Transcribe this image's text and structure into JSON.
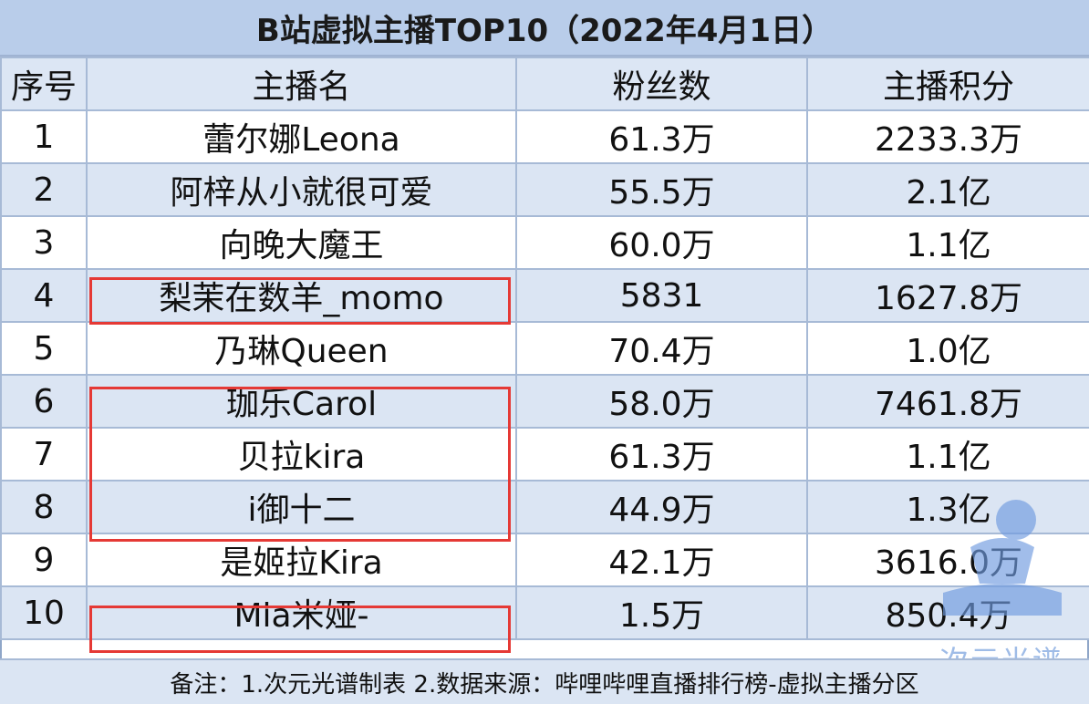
{
  "title": "B站虚拟主播TOP10（2022年4月1日）",
  "headers": [
    "序号",
    "主播名",
    "粉丝数",
    "主播积分"
  ],
  "rows": [
    {
      "rank": "1",
      "name": "蕾尔娜Leona",
      "fans": "61.3万",
      "score": "2233.3万"
    },
    {
      "rank": "2",
      "name": "阿梓从小就很可爱",
      "fans": "55.5万",
      "score": "2.1亿"
    },
    {
      "rank": "3",
      "name": "向晚大魔王",
      "fans": "60.0万",
      "score": "1.1亿"
    },
    {
      "rank": "4",
      "name": "梨茉在数羊_momo",
      "fans": "5831",
      "score": "1627.8万"
    },
    {
      "rank": "5",
      "name": "乃琳Queen",
      "fans": "70.4万",
      "score": "1.0亿"
    },
    {
      "rank": "6",
      "name": "珈乐Carol",
      "fans": "58.0万",
      "score": "7461.8万"
    },
    {
      "rank": "7",
      "name": "贝拉kira",
      "fans": "61.3万",
      "score": "1.1亿"
    },
    {
      "rank": "8",
      "name": "i御十二",
      "fans": "44.9万",
      "score": "1.3亿"
    },
    {
      "rank": "9",
      "name": "是姬拉Kira",
      "fans": "42.1万",
      "score": "3616.0万"
    },
    {
      "rank": "10",
      "name": "Mia米娅-",
      "fans": "1.5万",
      "score": "850.4万"
    }
  ],
  "footer": "备注：1.次元光谱制表 2.数据来源：哔哩哔哩直播排行榜-虚拟主播分区",
  "watermark": "次元光谱",
  "colors": {
    "header_bg": "#b9cdea",
    "stripe": "#dbe5f3",
    "highlight": "#e53935"
  }
}
